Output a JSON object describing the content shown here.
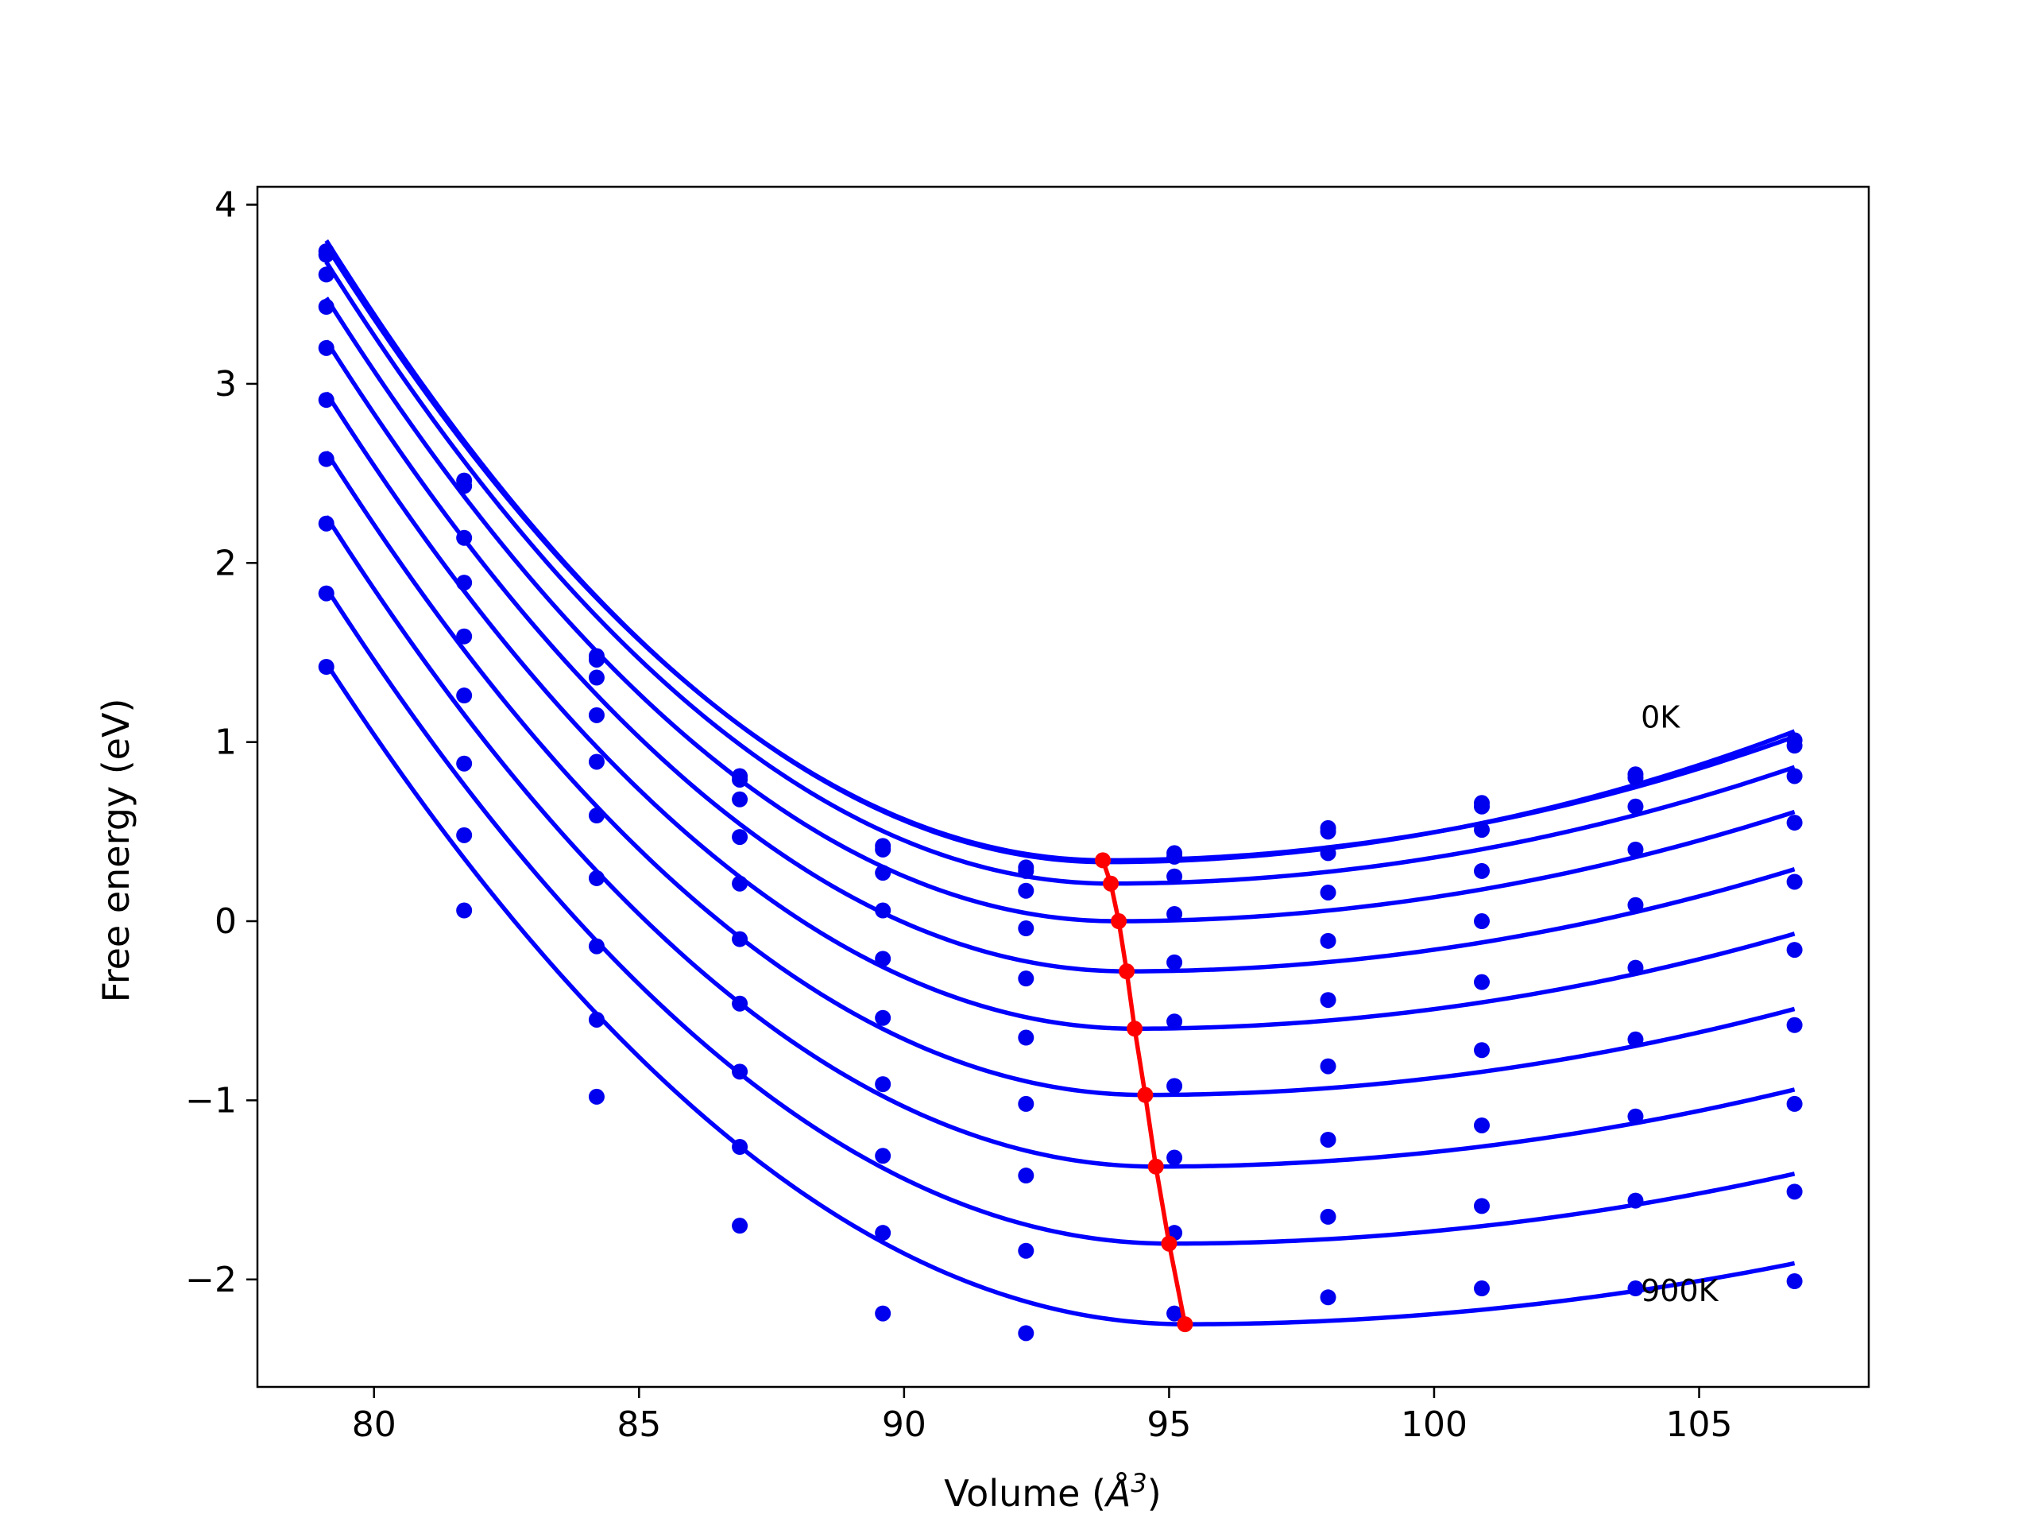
{
  "chart_data": {
    "type": "line",
    "title": "",
    "xlabel": "Volume (Å³)",
    "xlabel_parts": {
      "prefix": "Volume (",
      "symbol": "Å",
      "exponent": "3",
      "suffix": ")"
    },
    "ylabel": "Free energy (eV)",
    "xlim": [
      77.8,
      108.2
    ],
    "ylim": [
      -2.6,
      4.1
    ],
    "xticks": [
      80,
      85,
      90,
      95,
      100,
      105
    ],
    "yticks": [
      4,
      3,
      2,
      1,
      0,
      -1,
      -2
    ],
    "xtick_labels": [
      "80",
      "85",
      "90",
      "95",
      "100",
      "105"
    ],
    "ytick_labels": [
      "4",
      "3",
      "2",
      "1",
      "0",
      "−1",
      "−2"
    ],
    "grid": false,
    "legend": "none",
    "colors": {
      "curves": "#0000ff",
      "points": "#0000ee",
      "minimum_line": "#ff0000",
      "axes": "#000000"
    },
    "x": [
      79.1,
      81.7,
      84.2,
      86.9,
      89.6,
      92.3,
      95.1,
      98.0,
      100.9,
      103.8,
      106.8
    ],
    "fit_x_range": [
      79.1,
      106.8
    ],
    "series": [
      {
        "points": [
          3.74,
          2.46,
          1.48,
          0.81,
          0.42,
          0.3,
          0.38,
          0.52,
          0.66,
          0.82,
          1.01
        ],
        "fit": {
          "y_left": 3.8,
          "v_min": 93.8,
          "e_min": 0.33,
          "y_right": 1.06
        }
      },
      {
        "points": [
          3.72,
          2.43,
          1.46,
          0.79,
          0.4,
          0.28,
          0.36,
          0.5,
          0.64,
          0.8,
          0.98
        ],
        "fit": {
          "y_left": 3.77,
          "v_min": 93.8,
          "e_min": 0.34,
          "y_right": 1.03
        }
      },
      {
        "points": [
          3.61,
          2.14,
          1.36,
          0.68,
          0.27,
          0.17,
          0.25,
          0.38,
          0.51,
          0.64,
          0.81
        ],
        "fit": {
          "y_left": 3.68,
          "v_min": 93.9,
          "e_min": 0.21,
          "y_right": 0.86
        }
      },
      {
        "points": [
          3.43,
          1.89,
          1.15,
          0.47,
          0.06,
          -0.04,
          0.04,
          0.16,
          0.28,
          0.4,
          0.55
        ],
        "fit": {
          "y_left": 3.48,
          "v_min": 94.0,
          "e_min": 0.0,
          "y_right": 0.61
        }
      },
      {
        "points": [
          3.2,
          1.59,
          0.89,
          0.21,
          -0.21,
          -0.32,
          -0.23,
          -0.11,
          0.0,
          0.09,
          0.22
        ],
        "fit": {
          "y_left": 3.24,
          "v_min": 94.2,
          "e_min": -0.28,
          "y_right": 0.29
        }
      },
      {
        "points": [
          2.91,
          1.26,
          0.59,
          -0.1,
          -0.54,
          -0.65,
          -0.56,
          -0.44,
          -0.34,
          -0.26,
          -0.16
        ],
        "fit": {
          "y_left": 2.95,
          "v_min": 94.35,
          "e_min": -0.6,
          "y_right": -0.07
        }
      },
      {
        "points": [
          2.58,
          0.88,
          0.24,
          -0.46,
          -0.91,
          -1.02,
          -0.92,
          -0.81,
          -0.72,
          -0.66,
          -0.58
        ],
        "fit": {
          "y_left": 2.62,
          "v_min": 94.55,
          "e_min": -0.97,
          "y_right": -0.49
        }
      },
      {
        "points": [
          2.22,
          0.48,
          -0.14,
          -0.84,
          -1.31,
          -1.42,
          -1.32,
          -1.22,
          -1.14,
          -1.09,
          -1.02
        ],
        "fit": {
          "y_left": 2.26,
          "v_min": 94.75,
          "e_min": -1.37,
          "y_right": -0.94
        }
      },
      {
        "points": [
          1.83,
          0.06,
          -0.55,
          -1.26,
          -1.74,
          -1.84,
          -1.74,
          -1.65,
          -1.59,
          -1.56,
          -1.51
        ],
        "fit": {
          "y_left": 1.86,
          "v_min": 95.0,
          "e_min": -1.8,
          "y_right": -1.41
        }
      },
      {
        "points": [
          1.42,
          null,
          -0.98,
          -1.7,
          -2.19,
          -2.3,
          -2.19,
          -2.1,
          -2.05,
          -2.05,
          -2.01
        ],
        "fit": {
          "y_left": 1.44,
          "v_min": 95.3,
          "e_min": -2.25,
          "y_right": -1.91
        }
      }
    ],
    "minimum_line": {
      "x": [
        93.75,
        93.9,
        94.05,
        94.2,
        94.35,
        94.55,
        94.75,
        95.0,
        95.3
      ],
      "y": [
        0.34,
        0.21,
        0.0,
        -0.28,
        -0.6,
        -0.97,
        -1.37,
        -1.8,
        -2.25
      ]
    },
    "annotations": [
      {
        "text": "0K",
        "x": 103.9,
        "y": 1.08
      },
      {
        "text": "900K",
        "x": 103.9,
        "y": -2.12
      }
    ]
  }
}
